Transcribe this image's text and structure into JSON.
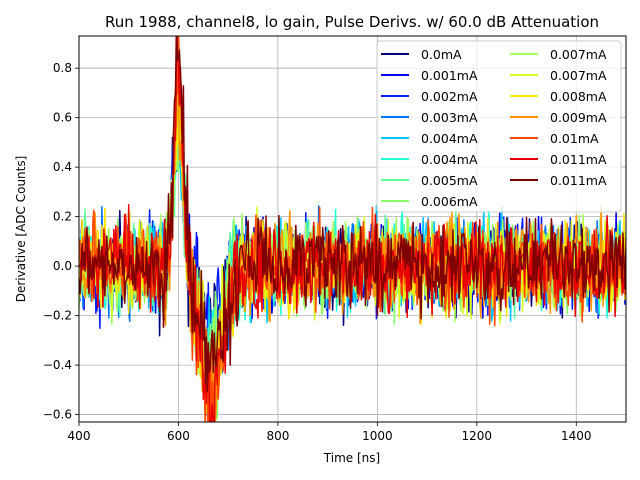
{
  "chart_data": {
    "type": "line",
    "title": "Run 1988, channel8, lo gain, Pulse Derivs. w/ 60.0 dB Attenuation",
    "xlabel": "Time [ns]",
    "ylabel": "Derivative [ADC Counts]",
    "xlim": [
      400,
      1500
    ],
    "ylim": [
      -0.63,
      0.93
    ],
    "xticks": [
      400,
      600,
      800,
      1000,
      1200,
      1400
    ],
    "yticks": [
      -0.6,
      -0.4,
      -0.2,
      0.0,
      0.2,
      0.4,
      0.6,
      0.8
    ],
    "xtick_labels": [
      "400",
      "600",
      "800",
      "1000",
      "1200",
      "1400"
    ],
    "ytick_labels": [
      "−0.6",
      "−0.4",
      "−0.2",
      "0.0",
      "0.2",
      "0.4",
      "0.6",
      "0.8"
    ],
    "grid": true,
    "legend_placement": "top-right",
    "legend_columns": 2,
    "sample_spacing_ns": 2,
    "series": [
      {
        "name": "0.0mA",
        "color": "#00007f",
        "peak": 0.62,
        "trough": -0.3
      },
      {
        "name": "0.001mA",
        "color": "#0000e8",
        "peak": 0.63,
        "trough": -0.32
      },
      {
        "name": "0.002mA",
        "color": "#001cff",
        "peak": 0.64,
        "trough": -0.33
      },
      {
        "name": "0.003mA",
        "color": "#0070ff",
        "peak": 0.6,
        "trough": -0.35
      },
      {
        "name": "0.004mA",
        "color": "#00c4ff",
        "peak": 0.55,
        "trough": -0.36
      },
      {
        "name": "0.004mA",
        "color": "#1fffd7",
        "peak": 0.56,
        "trough": -0.37
      },
      {
        "name": "0.005mA",
        "color": "#5affa0",
        "peak": 0.58,
        "trough": -0.38
      },
      {
        "name": "0.006mA",
        "color": "#8cff6d",
        "peak": 0.6,
        "trough": -0.4
      },
      {
        "name": "0.007mA",
        "color": "#a0ff5a",
        "peak": 0.62,
        "trough": -0.42
      },
      {
        "name": "0.007mA",
        "color": "#d7ff1f",
        "peak": 0.64,
        "trough": -0.44
      },
      {
        "name": "0.008mA",
        "color": "#ffe500",
        "peak": 0.66,
        "trough": -0.48
      },
      {
        "name": "0.009mA",
        "color": "#ff9400",
        "peak": 0.7,
        "trough": -0.52
      },
      {
        "name": "0.01mA",
        "color": "#ff4700",
        "peak": 0.74,
        "trough": -0.54
      },
      {
        "name": "0.011mA",
        "color": "#e80000",
        "peak": 0.8,
        "trough": -0.56
      },
      {
        "name": "0.011mA",
        "color": "#7f0000",
        "peak": 0.86,
        "trough": -0.38
      }
    ]
  }
}
